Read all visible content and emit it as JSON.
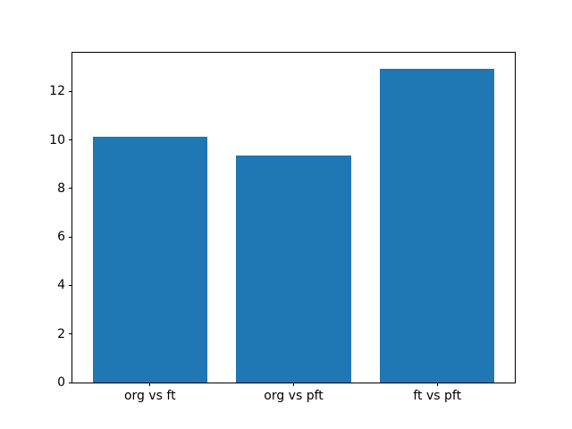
{
  "figure": {
    "background_color": "#ffffff",
    "axes_edge_color": "#000000",
    "tick_color": "#000000"
  },
  "chart_data": {
    "type": "bar",
    "title": "",
    "xlabel": "",
    "ylabel": "",
    "categories": [
      "org vs ft",
      "org vs pft",
      "ft vs pft"
    ],
    "values": [
      10.15,
      9.35,
      12.95
    ],
    "bar_color": "#1f77b4",
    "bar_width_fraction": 0.8,
    "ylim": [
      0,
      13.6
    ],
    "yticks": [
      0,
      2,
      4,
      6,
      8,
      10,
      12
    ],
    "xlim": [
      -0.54,
      2.54
    ],
    "grid": false,
    "legend": "none"
  }
}
